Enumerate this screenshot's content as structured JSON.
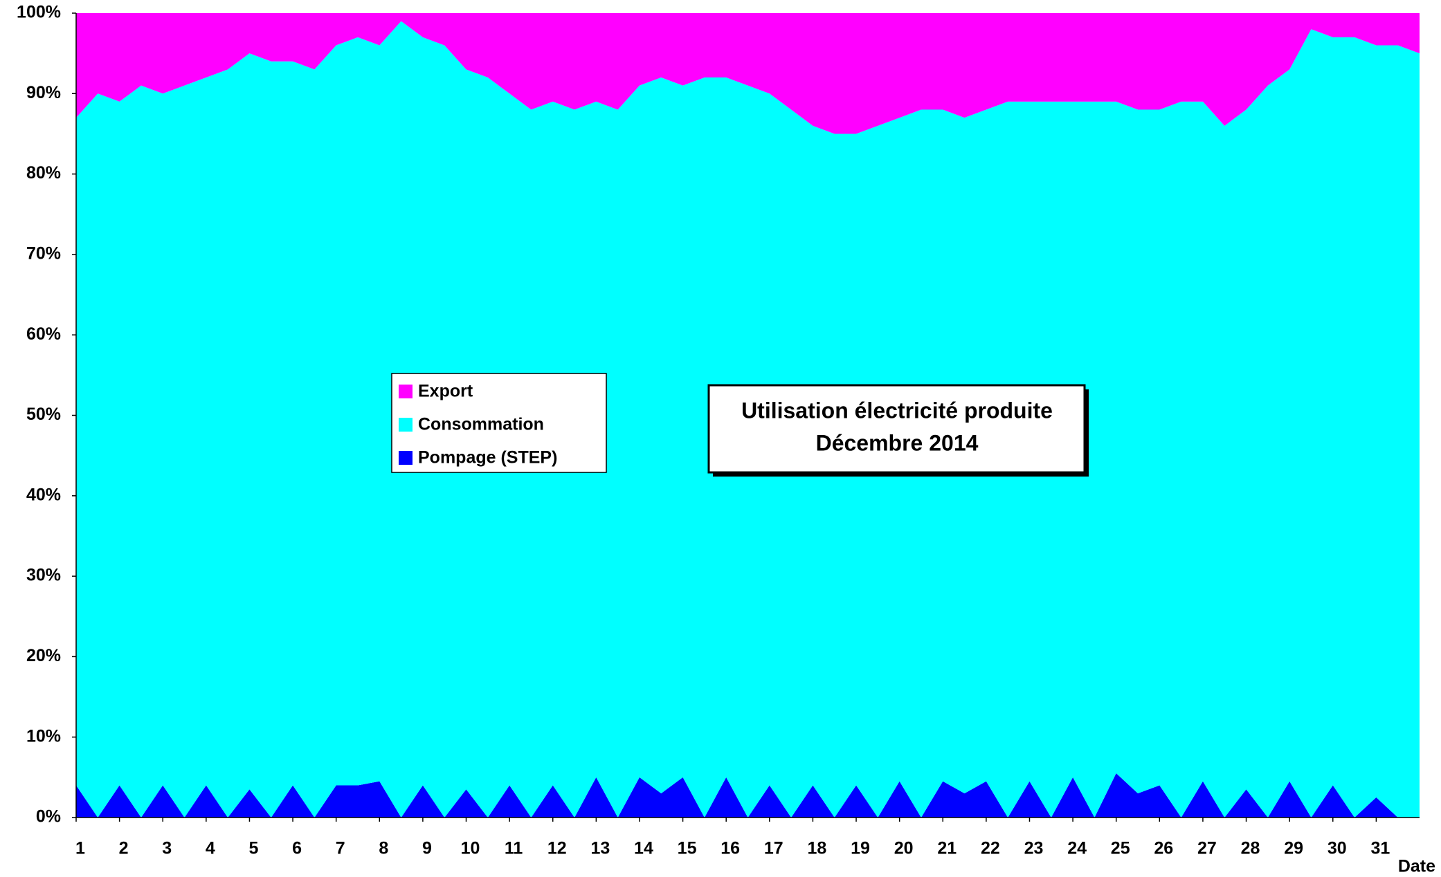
{
  "chart_data": {
    "type": "stacked_area",
    "title": [
      "Utilisation électricité produite",
      "Décembre 2014"
    ],
    "xlabel": "Date",
    "x": [
      1,
      1.5,
      2,
      2.5,
      3,
      3.5,
      4,
      4.5,
      5,
      5.5,
      6,
      6.5,
      7,
      7.5,
      8,
      8.5,
      9,
      9.5,
      10,
      10.5,
      11,
      11.5,
      12,
      12.5,
      13,
      13.5,
      14,
      14.5,
      15,
      15.5,
      16,
      16.5,
      17,
      17.5,
      18,
      18.5,
      19,
      19.5,
      20,
      20.5,
      21,
      21.5,
      22,
      22.5,
      23,
      23.5,
      24,
      24.5,
      25,
      25.5,
      26,
      26.5,
      27,
      27.5,
      28,
      28.5,
      29,
      29.5,
      30,
      30.5,
      31,
      31.5,
      32
    ],
    "series": [
      {
        "name": "Export",
        "color": "#ff00ff",
        "values": [
          13,
          10,
          11,
          9,
          10,
          9,
          8,
          7,
          5,
          6,
          6,
          7,
          4,
          3,
          4,
          1,
          3,
          4,
          7,
          8,
          10,
          12,
          11,
          12,
          11,
          12,
          9,
          8,
          9,
          8,
          8,
          9,
          10,
          12,
          14,
          15,
          15,
          14,
          13,
          12,
          12,
          13,
          12,
          11,
          11,
          11,
          11,
          11,
          11,
          12,
          12,
          11,
          11,
          14,
          12,
          9,
          7,
          2,
          3,
          3,
          4,
          4,
          5
        ]
      },
      {
        "name": "Consommation",
        "color": "#00ffff",
        "values": [
          83,
          90,
          85,
          91,
          86,
          91,
          88,
          93,
          91.5,
          94,
          90,
          93,
          92,
          93,
          91.5,
          99,
          93,
          96,
          89.5,
          92,
          86,
          88,
          85,
          88,
          84,
          88,
          86,
          89,
          86,
          92,
          87,
          91,
          86,
          88,
          82,
          85,
          81,
          86,
          82.5,
          88,
          83.5,
          84,
          83.5,
          89,
          84.5,
          89,
          84,
          89,
          83.5,
          85,
          84,
          89,
          84.5,
          86,
          84.5,
          91,
          88.5,
          98,
          93,
          97,
          93.5,
          96,
          95
        ]
      },
      {
        "name": "Pompage (STEP)",
        "color": "#0000ff",
        "values": [
          4,
          0,
          4,
          0,
          4,
          0,
          4,
          0,
          3.5,
          0,
          4,
          0,
          4,
          4,
          4.5,
          0,
          4,
          0,
          3.5,
          0,
          4,
          0,
          4,
          0,
          5,
          0,
          5,
          3,
          5,
          0,
          5,
          0,
          4,
          0,
          4,
          0,
          4,
          0,
          4.5,
          0,
          4.5,
          3,
          4.5,
          0,
          4.5,
          0,
          5,
          0,
          5.5,
          3,
          4,
          0,
          4.5,
          0,
          3.5,
          0,
          4.5,
          0,
          4,
          0,
          2.5,
          0,
          0
        ]
      }
    ],
    "xlim": [
      1,
      32
    ],
    "xticks": [
      1,
      2,
      3,
      4,
      5,
      6,
      7,
      8,
      9,
      10,
      11,
      12,
      13,
      14,
      15,
      16,
      17,
      18,
      19,
      20,
      21,
      22,
      23,
      24,
      25,
      26,
      27,
      28,
      29,
      30,
      31
    ],
    "ylim": [
      0,
      100
    ],
    "yticks": [
      {
        "value": 0,
        "label": "0%"
      },
      {
        "value": 10,
        "label": "10%"
      },
      {
        "value": 20,
        "label": "20%"
      },
      {
        "value": 30,
        "label": "30%"
      },
      {
        "value": 40,
        "label": "40%"
      },
      {
        "value": 50,
        "label": "50%"
      },
      {
        "value": 60,
        "label": "60%"
      },
      {
        "value": 70,
        "label": "70%"
      },
      {
        "value": 80,
        "label": "80%"
      },
      {
        "value": 90,
        "label": "90%"
      },
      {
        "value": 100,
        "label": "100%"
      }
    ],
    "grid": false
  }
}
